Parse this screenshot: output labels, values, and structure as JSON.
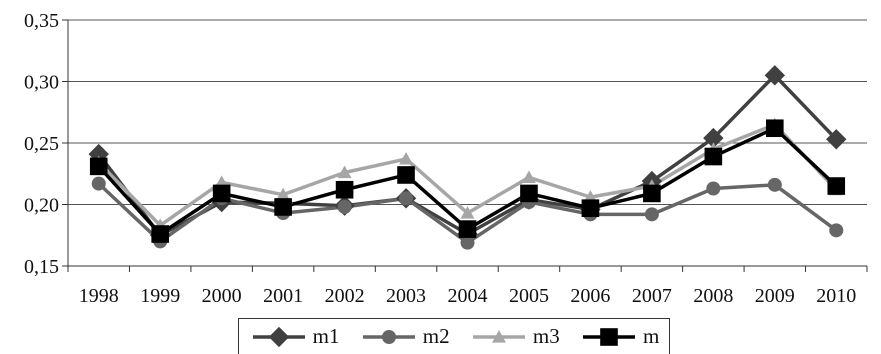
{
  "chart_data": {
    "type": "line",
    "categories": [
      "1998",
      "1999",
      "2000",
      "2001",
      "2002",
      "2003",
      "2004",
      "2005",
      "2006",
      "2007",
      "2008",
      "2009",
      "2010"
    ],
    "ylim": [
      0.15,
      0.35
    ],
    "yticks": [
      "0,15",
      "0,20",
      "0,25",
      "0,30",
      "0,35"
    ],
    "grid": "horizontal",
    "legend_position": "bottom",
    "series": [
      {
        "name": "m1",
        "color": "#404040",
        "marker": "diamond",
        "values": [
          0.241,
          0.175,
          0.202,
          0.201,
          0.199,
          0.205,
          0.176,
          0.204,
          0.196,
          0.219,
          0.254,
          0.305,
          0.253
        ]
      },
      {
        "name": "m2",
        "color": "#666666",
        "marker": "circle",
        "values": [
          0.217,
          0.17,
          0.205,
          0.193,
          0.198,
          0.205,
          0.169,
          0.202,
          0.192,
          0.192,
          0.213,
          0.216,
          0.179
        ]
      },
      {
        "name": "m3",
        "color": "#a6a6a6",
        "marker": "triangle",
        "values": [
          0.234,
          0.183,
          0.218,
          0.208,
          0.226,
          0.237,
          0.193,
          0.222,
          0.206,
          0.215,
          0.245,
          0.265,
          0.212
        ]
      },
      {
        "name": "m",
        "color": "#000000",
        "marker": "square",
        "values": [
          0.231,
          0.176,
          0.209,
          0.198,
          0.212,
          0.224,
          0.18,
          0.209,
          0.197,
          0.209,
          0.239,
          0.262,
          0.215
        ]
      }
    ]
  }
}
